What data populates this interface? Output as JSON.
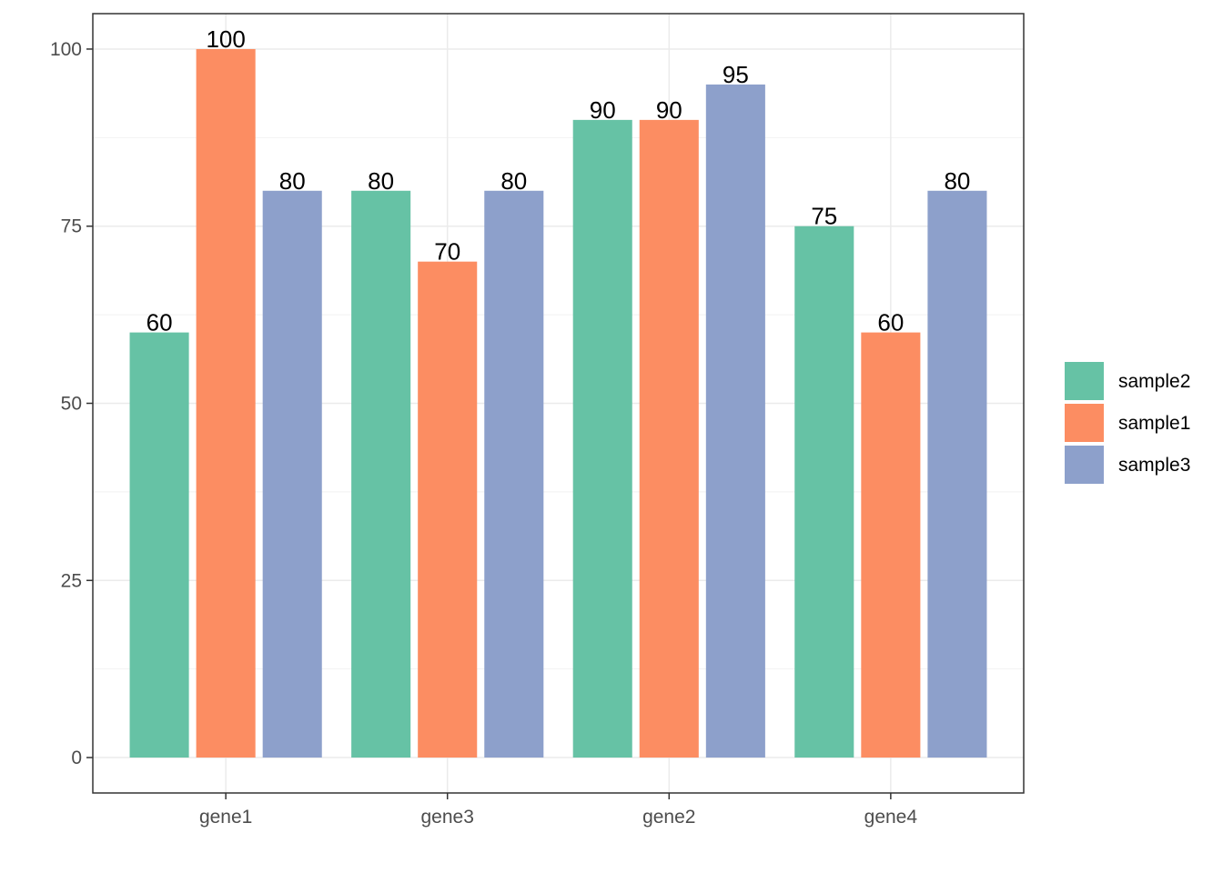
{
  "chart_data": {
    "type": "bar",
    "title": "",
    "xlabel": "",
    "ylabel": "",
    "categories": [
      "gene1",
      "gene3",
      "gene2",
      "gene4"
    ],
    "series": [
      {
        "name": "sample2",
        "color": "#66C2A5",
        "values": [
          60,
          80,
          90,
          75
        ]
      },
      {
        "name": "sample1",
        "color": "#FC8D62",
        "values": [
          100,
          70,
          90,
          60
        ]
      },
      {
        "name": "sample3",
        "color": "#8DA0CB",
        "values": [
          80,
          80,
          95,
          80
        ]
      }
    ],
    "ylim": [
      -5,
      105
    ],
    "yticks": [
      0,
      25,
      50,
      75,
      100
    ],
    "ytick_labels": [
      "0",
      "25",
      "50",
      "75",
      "100"
    ],
    "grid": true,
    "legend_position": "right",
    "data_labels": true
  }
}
